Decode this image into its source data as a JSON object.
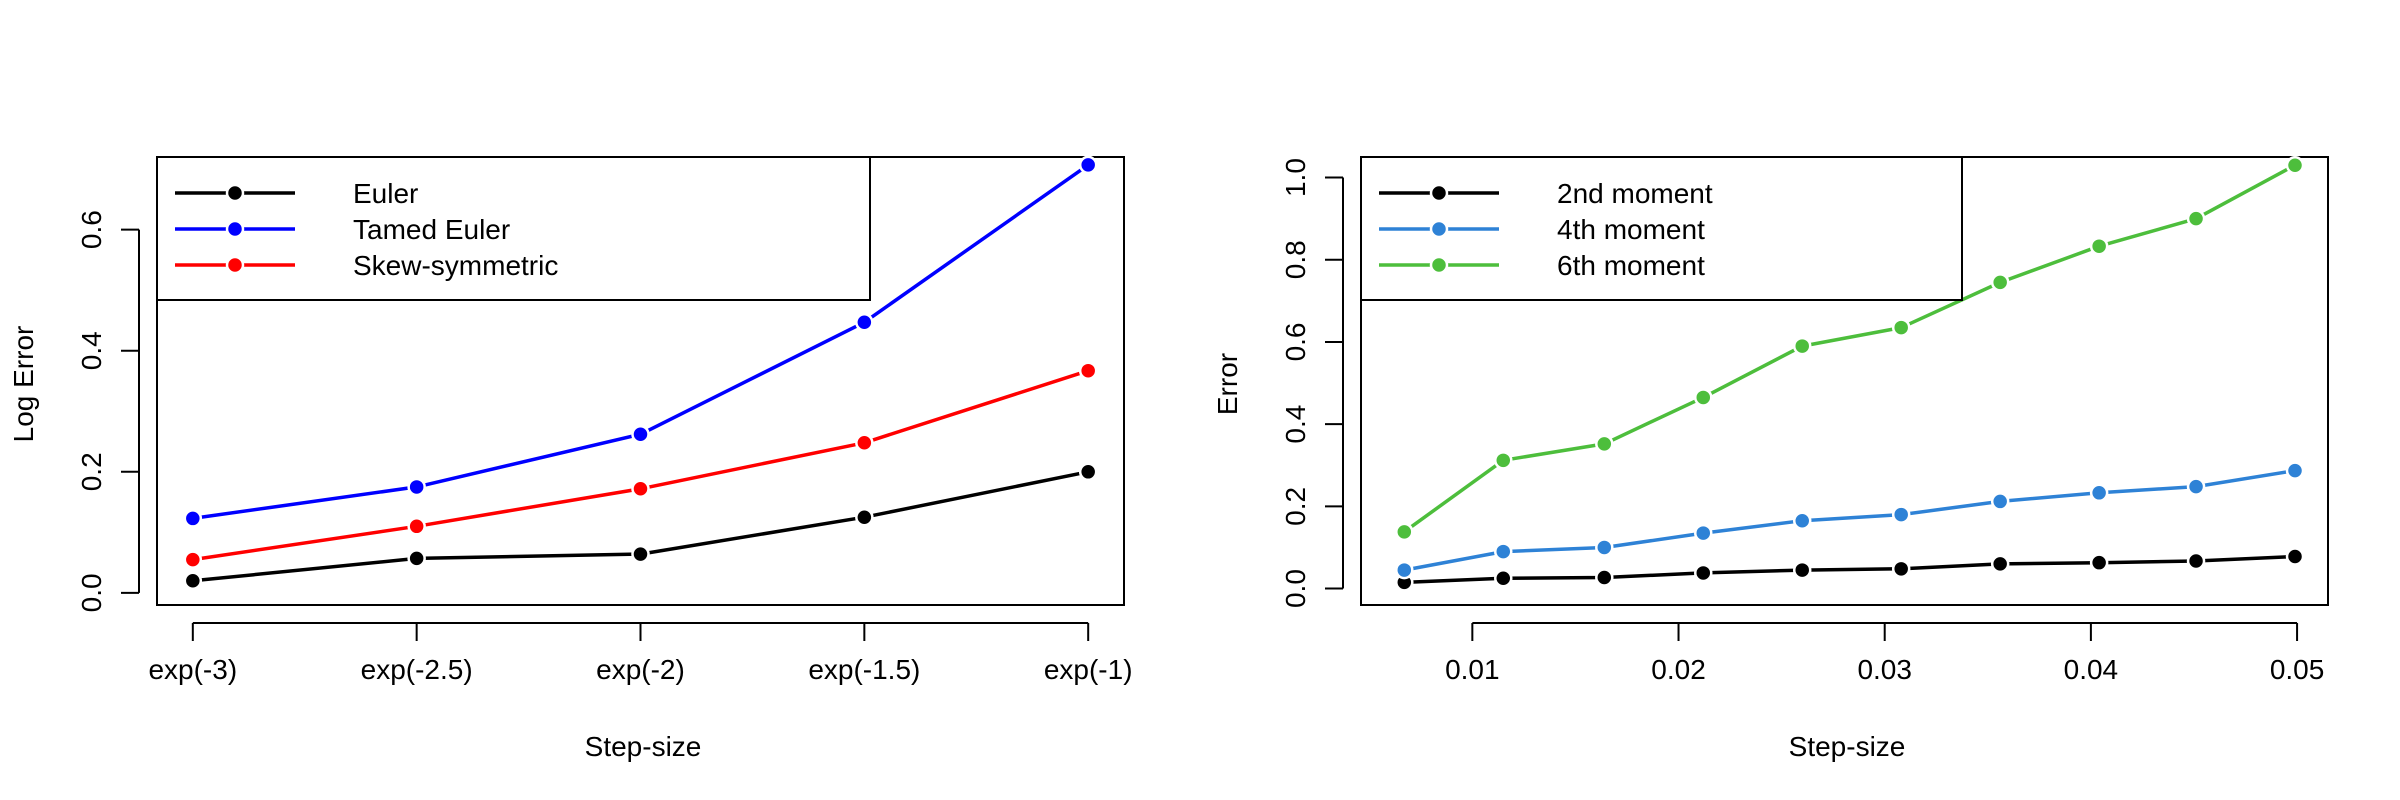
{
  "chart_data": [
    {
      "type": "line",
      "title": "",
      "xlabel": "Step-size",
      "ylabel": "Log Error",
      "categories": [
        "exp(-3)",
        "exp(-2.5)",
        "exp(-2)",
        "exp(-1.5)",
        "exp(-1)"
      ],
      "ylim": [
        -0.02,
        0.72
      ],
      "yticks": [
        0.0,
        0.2,
        0.4,
        0.6
      ],
      "ytick_labels": [
        "0.0",
        "0.2",
        "0.4",
        "0.6"
      ],
      "grid": false,
      "legend_position": "top-left",
      "series": [
        {
          "name": "Euler",
          "color": "#000000",
          "values": [
            0.02,
            0.057,
            0.064,
            0.125,
            0.2
          ]
        },
        {
          "name": "Tamed Euler",
          "color": "#0000ff",
          "values": [
            0.123,
            0.175,
            0.262,
            0.447,
            0.707
          ]
        },
        {
          "name": "Skew-symmetric",
          "color": "#ff0000",
          "values": [
            0.055,
            0.11,
            0.172,
            0.248,
            0.367
          ]
        }
      ]
    },
    {
      "type": "line",
      "title": "",
      "xlabel": "Step-size",
      "ylabel": "Error",
      "x": [
        0.0067,
        0.0115,
        0.0164,
        0.0212,
        0.026,
        0.0308,
        0.0356,
        0.0404,
        0.0451,
        0.0499
      ],
      "xlim": [
        0.0046,
        0.0515
      ],
      "xticks": [
        0.01,
        0.02,
        0.03,
        0.04,
        0.05
      ],
      "xtick_labels": [
        "0.01",
        "0.02",
        "0.03",
        "0.04",
        "0.05"
      ],
      "ylim": [
        -0.04,
        1.05
      ],
      "yticks": [
        0.0,
        0.2,
        0.4,
        0.6,
        0.8,
        1.0
      ],
      "ytick_labels": [
        "0.0",
        "0.2",
        "0.4",
        "0.6",
        "0.8",
        "1.0"
      ],
      "grid": false,
      "legend_position": "top-left",
      "series": [
        {
          "name": "2nd moment",
          "color": "#000000",
          "values": [
            0.015,
            0.025,
            0.027,
            0.038,
            0.045,
            0.048,
            0.06,
            0.063,
            0.067,
            0.078
          ]
        },
        {
          "name": "4th moment",
          "color": "#2e82d6",
          "values": [
            0.045,
            0.09,
            0.1,
            0.135,
            0.165,
            0.18,
            0.212,
            0.233,
            0.248,
            0.287
          ]
        },
        {
          "name": "6th moment",
          "color": "#4dbe3c",
          "values": [
            0.138,
            0.312,
            0.352,
            0.465,
            0.59,
            0.635,
            0.745,
            0.833,
            0.9,
            1.03
          ]
        }
      ]
    }
  ]
}
